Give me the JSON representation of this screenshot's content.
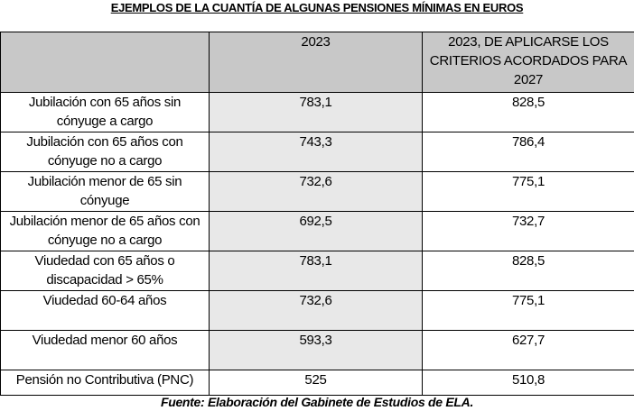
{
  "title": "EJEMPLOS DE LA CUANTÍA DE ALGUNAS PENSIONES MÍNIMAS EN EUROS",
  "columns": {
    "col0": "",
    "col1": "2023",
    "col2": "2023, DE APLICARSE LOS CRITERIOS ACORDADOS PARA 2027"
  },
  "rows": [
    {
      "label": "Jubilación con 65 años sin cónyuge a cargo",
      "v2023": "783,1",
      "v2027": "828,5"
    },
    {
      "label": "Jubilación con 65 años con cónyuge no a cargo",
      "v2023": "743,3",
      "v2027": "786,4"
    },
    {
      "label": "Jubilación menor de 65 sin cónyuge",
      "v2023": "732,6",
      "v2027": "775,1"
    },
    {
      "label": "Jubilación menor de 65 años con cónyuge no a cargo",
      "v2023": "692,5",
      "v2027": "732,7"
    },
    {
      "label": "Viudedad con 65 años o discapacidad > 65%",
      "v2023": "783,1",
      "v2027": "828,5"
    },
    {
      "label": "Viudedad 60-64 años",
      "v2023": "732,6",
      "v2027": "775,1"
    },
    {
      "label": "Viudedad menor 60 años",
      "v2023": "593,3",
      "v2027": "627,7"
    },
    {
      "label": "Pensión no Contributiva (PNC)",
      "v2023": "525",
      "v2027": "510,8"
    }
  ],
  "footer": "Fuente: Elaboración del Gabinete de Estudios de ELA."
}
